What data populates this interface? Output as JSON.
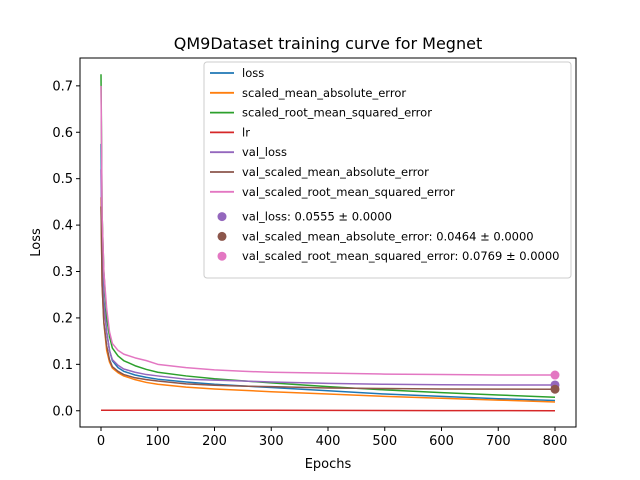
{
  "chart_data": {
    "type": "line",
    "title": "QM9Dataset training curve for Megnet",
    "xlabel": "Epochs",
    "ylabel": "Loss",
    "xlim": [
      -37,
      837
    ],
    "ylim": [
      -0.035,
      0.76
    ],
    "xticks": [
      0,
      100,
      200,
      300,
      400,
      500,
      600,
      700,
      800
    ],
    "yticks": [
      0.0,
      0.1,
      0.2,
      0.3,
      0.4,
      0.5,
      0.6,
      0.7
    ],
    "ytick_labels": [
      "0.0",
      "0.1",
      "0.2",
      "0.3",
      "0.4",
      "0.5",
      "0.6",
      "0.7"
    ],
    "grid": false,
    "legend_position": "top-right",
    "series": [
      {
        "name": "loss",
        "color": "#1f77b4",
        "points": [
          [
            0,
            0.575
          ],
          [
            2,
            0.33
          ],
          [
            5,
            0.24
          ],
          [
            10,
            0.17
          ],
          [
            15,
            0.13
          ],
          [
            20,
            0.108
          ],
          [
            30,
            0.093
          ],
          [
            40,
            0.085
          ],
          [
            60,
            0.077
          ],
          [
            80,
            0.072
          ],
          [
            100,
            0.068
          ],
          [
            150,
            0.062
          ],
          [
            200,
            0.057
          ],
          [
            300,
            0.05
          ],
          [
            400,
            0.043
          ],
          [
            500,
            0.036
          ],
          [
            600,
            0.031
          ],
          [
            700,
            0.026
          ],
          [
            800,
            0.022
          ]
        ]
      },
      {
        "name": "scaled_mean_absolute_error",
        "color": "#ff7f0e",
        "points": [
          [
            0,
            0.46
          ],
          [
            2,
            0.27
          ],
          [
            5,
            0.19
          ],
          [
            10,
            0.13
          ],
          [
            15,
            0.105
          ],
          [
            20,
            0.092
          ],
          [
            30,
            0.082
          ],
          [
            40,
            0.075
          ],
          [
            60,
            0.067
          ],
          [
            80,
            0.061
          ],
          [
            100,
            0.057
          ],
          [
            150,
            0.051
          ],
          [
            200,
            0.047
          ],
          [
            300,
            0.041
          ],
          [
            400,
            0.036
          ],
          [
            500,
            0.031
          ],
          [
            600,
            0.027
          ],
          [
            700,
            0.023
          ],
          [
            800,
            0.019
          ]
        ]
      },
      {
        "name": "scaled_root_mean_squared_error",
        "color": "#2ca02c",
        "points": [
          [
            0,
            0.725
          ],
          [
            2,
            0.42
          ],
          [
            5,
            0.3
          ],
          [
            10,
            0.2
          ],
          [
            15,
            0.16
          ],
          [
            20,
            0.135
          ],
          [
            30,
            0.118
          ],
          [
            40,
            0.108
          ],
          [
            60,
            0.097
          ],
          [
            80,
            0.089
          ],
          [
            100,
            0.083
          ],
          [
            150,
            0.075
          ],
          [
            200,
            0.069
          ],
          [
            300,
            0.06
          ],
          [
            400,
            0.052
          ],
          [
            500,
            0.045
          ],
          [
            600,
            0.039
          ],
          [
            700,
            0.034
          ],
          [
            800,
            0.029
          ]
        ]
      },
      {
        "name": "lr",
        "color": "#d62728",
        "points": [
          [
            0,
            0.001
          ],
          [
            100,
            0.001
          ],
          [
            200,
            0.001
          ],
          [
            300,
            0.001
          ],
          [
            400,
            0.0008
          ],
          [
            500,
            0.0006
          ],
          [
            600,
            0.0004
          ],
          [
            700,
            0.0002
          ],
          [
            800,
            0.0001
          ]
        ]
      },
      {
        "name": "val_loss",
        "color": "#9467bd",
        "points": [
          [
            0,
            0.52
          ],
          [
            2,
            0.32
          ],
          [
            5,
            0.23
          ],
          [
            10,
            0.17
          ],
          [
            15,
            0.13
          ],
          [
            20,
            0.11
          ],
          [
            30,
            0.098
          ],
          [
            40,
            0.09
          ],
          [
            60,
            0.083
          ],
          [
            80,
            0.078
          ],
          [
            100,
            0.075
          ],
          [
            150,
            0.068
          ],
          [
            200,
            0.066
          ],
          [
            250,
            0.064
          ],
          [
            300,
            0.062
          ],
          [
            400,
            0.059
          ],
          [
            500,
            0.057
          ],
          [
            600,
            0.056
          ],
          [
            700,
            0.0555
          ],
          [
            800,
            0.0555
          ]
        ]
      },
      {
        "name": "val_scaled_mean_absolute_error",
        "color": "#8c564b",
        "points": [
          [
            0,
            0.44
          ],
          [
            2,
            0.27
          ],
          [
            5,
            0.19
          ],
          [
            10,
            0.14
          ],
          [
            15,
            0.11
          ],
          [
            20,
            0.095
          ],
          [
            30,
            0.085
          ],
          [
            40,
            0.078
          ],
          [
            60,
            0.071
          ],
          [
            80,
            0.067
          ],
          [
            100,
            0.064
          ],
          [
            150,
            0.058
          ],
          [
            200,
            0.055
          ],
          [
            250,
            0.053
          ],
          [
            300,
            0.052
          ],
          [
            400,
            0.049
          ],
          [
            500,
            0.048
          ],
          [
            600,
            0.047
          ],
          [
            700,
            0.0465
          ],
          [
            800,
            0.0464
          ]
        ]
      },
      {
        "name": "val_scaled_root_mean_squared_error",
        "color": "#e377c2",
        "points": [
          [
            0,
            0.7
          ],
          [
            2,
            0.42
          ],
          [
            5,
            0.3
          ],
          [
            10,
            0.22
          ],
          [
            15,
            0.17
          ],
          [
            20,
            0.145
          ],
          [
            30,
            0.13
          ],
          [
            40,
            0.122
          ],
          [
            60,
            0.114
          ],
          [
            80,
            0.108
          ],
          [
            100,
            0.1
          ],
          [
            150,
            0.093
          ],
          [
            200,
            0.088
          ],
          [
            250,
            0.085
          ],
          [
            300,
            0.083
          ],
          [
            400,
            0.081
          ],
          [
            500,
            0.079
          ],
          [
            600,
            0.078
          ],
          [
            700,
            0.077
          ],
          [
            800,
            0.0769
          ]
        ]
      }
    ],
    "markers": [
      {
        "label": "val_loss: 0.0555 ± 0.0000",
        "x": 800,
        "y": 0.0555,
        "color": "#9467bd"
      },
      {
        "label": "val_scaled_mean_absolute_error: 0.0464 ± 0.0000",
        "x": 800,
        "y": 0.0464,
        "color": "#8c564b"
      },
      {
        "label": "val_scaled_root_mean_squared_error: 0.0769 ± 0.0000",
        "x": 800,
        "y": 0.0769,
        "color": "#e377c2"
      }
    ]
  }
}
